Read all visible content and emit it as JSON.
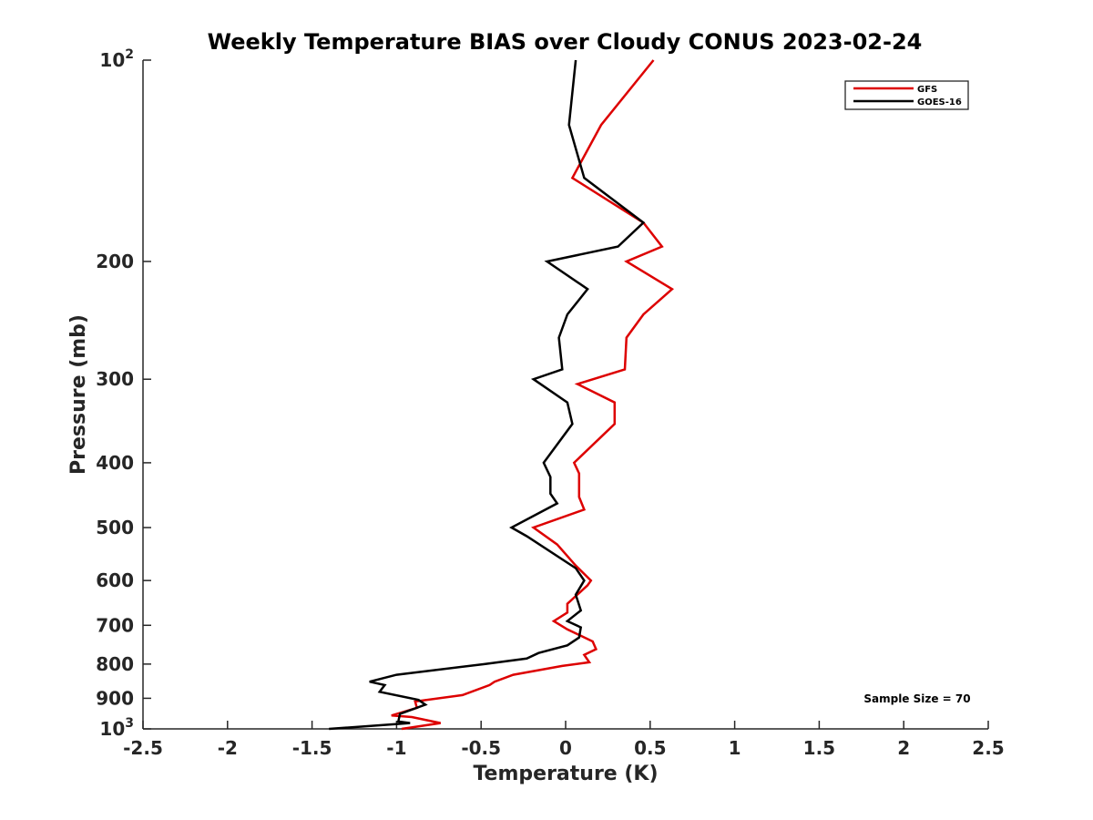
{
  "chart_data": {
    "type": "line",
    "title": "Weekly Temperature BIAS over Cloudy CONUS 2023-02-24",
    "xlabel": "Temperature (K)",
    "ylabel": "Pressure (mb)",
    "xlim": [
      -2.5,
      2.5
    ],
    "ylim": [
      100,
      1000
    ],
    "y_scale": "log",
    "y_reversed": true,
    "grid": false,
    "legend_position": "top-right",
    "xticks": [
      "-2.5",
      "-2",
      "-1.5",
      "-1",
      "-0.5",
      "0",
      "0.5",
      "1",
      "1.5",
      "2",
      "2.5"
    ],
    "yticks": [
      {
        "value": 100,
        "base": "10",
        "exp": "2"
      },
      {
        "value": 200,
        "label": "200"
      },
      {
        "value": 300,
        "label": "300"
      },
      {
        "value": 400,
        "label": "400"
      },
      {
        "value": 500,
        "label": "500"
      },
      {
        "value": 600,
        "label": "600"
      },
      {
        "value": 700,
        "label": "700"
      },
      {
        "value": 800,
        "label": "800"
      },
      {
        "value": 900,
        "label": "900"
      },
      {
        "value": 1000,
        "base": "10",
        "exp": "3"
      }
    ],
    "annotation": "Sample Size = 70",
    "series": [
      {
        "name": "GFS",
        "color": "#dd0000",
        "points": [
          [
            0.52,
            100
          ],
          [
            0.21,
            125
          ],
          [
            0.04,
            150
          ],
          [
            0.46,
            175
          ],
          [
            0.57,
            190
          ],
          [
            0.36,
            200
          ],
          [
            0.63,
            220
          ],
          [
            0.46,
            240
          ],
          [
            0.36,
            260
          ],
          [
            0.35,
            290
          ],
          [
            0.07,
            305
          ],
          [
            0.29,
            325
          ],
          [
            0.29,
            350
          ],
          [
            0.05,
            400
          ],
          [
            0.08,
            415
          ],
          [
            0.08,
            450
          ],
          [
            0.11,
            470
          ],
          [
            -0.19,
            500
          ],
          [
            -0.05,
            530
          ],
          [
            0.06,
            570
          ],
          [
            0.15,
            600
          ],
          [
            0.13,
            610
          ],
          [
            0.01,
            650
          ],
          [
            0.01,
            670
          ],
          [
            -0.07,
            690
          ],
          [
            0.01,
            710
          ],
          [
            0.16,
            740
          ],
          [
            0.18,
            760
          ],
          [
            0.11,
            775
          ],
          [
            0.14,
            795
          ],
          [
            -0.02,
            805
          ],
          [
            -0.31,
            830
          ],
          [
            -0.42,
            850
          ],
          [
            -0.45,
            860
          ],
          [
            -0.61,
            890
          ],
          [
            -0.89,
            910
          ],
          [
            -0.88,
            930
          ],
          [
            -1.03,
            955
          ],
          [
            -0.91,
            960
          ],
          [
            -0.74,
            980
          ],
          [
            -0.97,
            1000
          ]
        ]
      },
      {
        "name": "GOES-16",
        "color": "#000000",
        "points": [
          [
            0.06,
            100
          ],
          [
            0.02,
            125
          ],
          [
            0.11,
            150
          ],
          [
            0.46,
            175
          ],
          [
            0.31,
            190
          ],
          [
            -0.11,
            200
          ],
          [
            0.13,
            220
          ],
          [
            0.01,
            240
          ],
          [
            -0.04,
            260
          ],
          [
            -0.02,
            290
          ],
          [
            -0.19,
            300
          ],
          [
            0.01,
            325
          ],
          [
            0.04,
            350
          ],
          [
            -0.13,
            400
          ],
          [
            -0.09,
            420
          ],
          [
            -0.09,
            445
          ],
          [
            -0.05,
            460
          ],
          [
            -0.32,
            500
          ],
          [
            -0.23,
            515
          ],
          [
            0.06,
            575
          ],
          [
            0.11,
            600
          ],
          [
            0.06,
            630
          ],
          [
            0.09,
            665
          ],
          [
            0.01,
            690
          ],
          [
            0.09,
            705
          ],
          [
            0.08,
            730
          ],
          [
            0.01,
            750
          ],
          [
            -0.16,
            770
          ],
          [
            -0.23,
            785
          ],
          [
            -0.48,
            800
          ],
          [
            -1.0,
            830
          ],
          [
            -1.16,
            850
          ],
          [
            -1.07,
            860
          ],
          [
            -1.1,
            880
          ],
          [
            -0.87,
            905
          ],
          [
            -0.83,
            920
          ],
          [
            -0.98,
            950
          ],
          [
            -0.99,
            975
          ],
          [
            -0.92,
            980
          ],
          [
            -1.4,
            1000
          ]
        ]
      }
    ]
  }
}
